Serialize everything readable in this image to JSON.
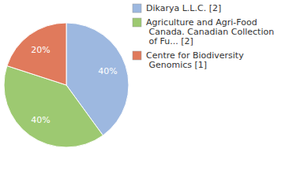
{
  "chart_data": {
    "type": "pie",
    "categories": [
      "Dikarya L.L.C. [2]",
      "Agriculture and Agri-Food Canada. Canadian Collection of Fu... [2]",
      "Centre for Biodiversity Genomics [1]"
    ],
    "values": [
      40,
      40,
      20
    ],
    "value_labels": [
      "40%",
      "40%",
      "20%"
    ],
    "colors": [
      "#9db8e0",
      "#9dc971",
      "#e07a5c"
    ],
    "data_labels": true,
    "legend": "top-right"
  }
}
